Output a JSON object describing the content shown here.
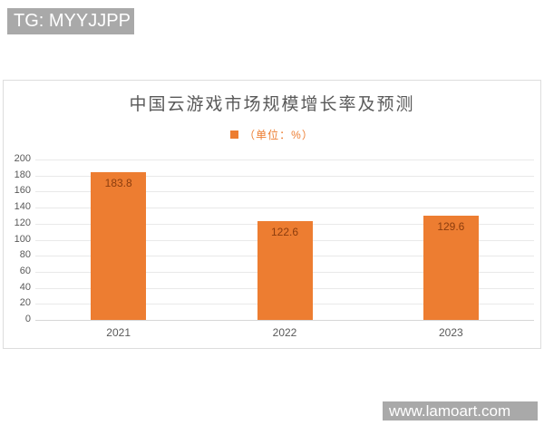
{
  "watermark_top": {
    "text": "TG: MYYJJPP"
  },
  "watermark_bottom": {
    "text": "www.lamoart.com"
  },
  "chart_data": {
    "type": "bar",
    "title": "中国云游戏市场规模增长率及预测",
    "legend": "（单位：%）",
    "legend_position": "top",
    "categories": [
      "2021",
      "2022",
      "2023"
    ],
    "values": [
      183.8,
      122.6,
      129.6
    ],
    "value_labels": [
      "183.8",
      "122.6",
      "129.6"
    ],
    "xlabel": "",
    "ylabel": "",
    "ylim": [
      0,
      200
    ],
    "ytick_step": 20,
    "yticks": [
      0,
      20,
      40,
      60,
      80,
      100,
      120,
      140,
      160,
      180,
      200
    ],
    "grid": true,
    "colors": {
      "bar": "#ED7D31",
      "data_label": "#8C3D0E",
      "title": "#595959",
      "axis_label": "#595959",
      "gridline": "#E9E9E9",
      "baseline": "#D6D6D6",
      "legend_text": "#ED7D31",
      "legend_swatch": "#ED7D31",
      "card_border": "#DDDDDD",
      "watermark_bg": "#A9A9A9",
      "watermark_text": "#FFFFFF"
    }
  }
}
